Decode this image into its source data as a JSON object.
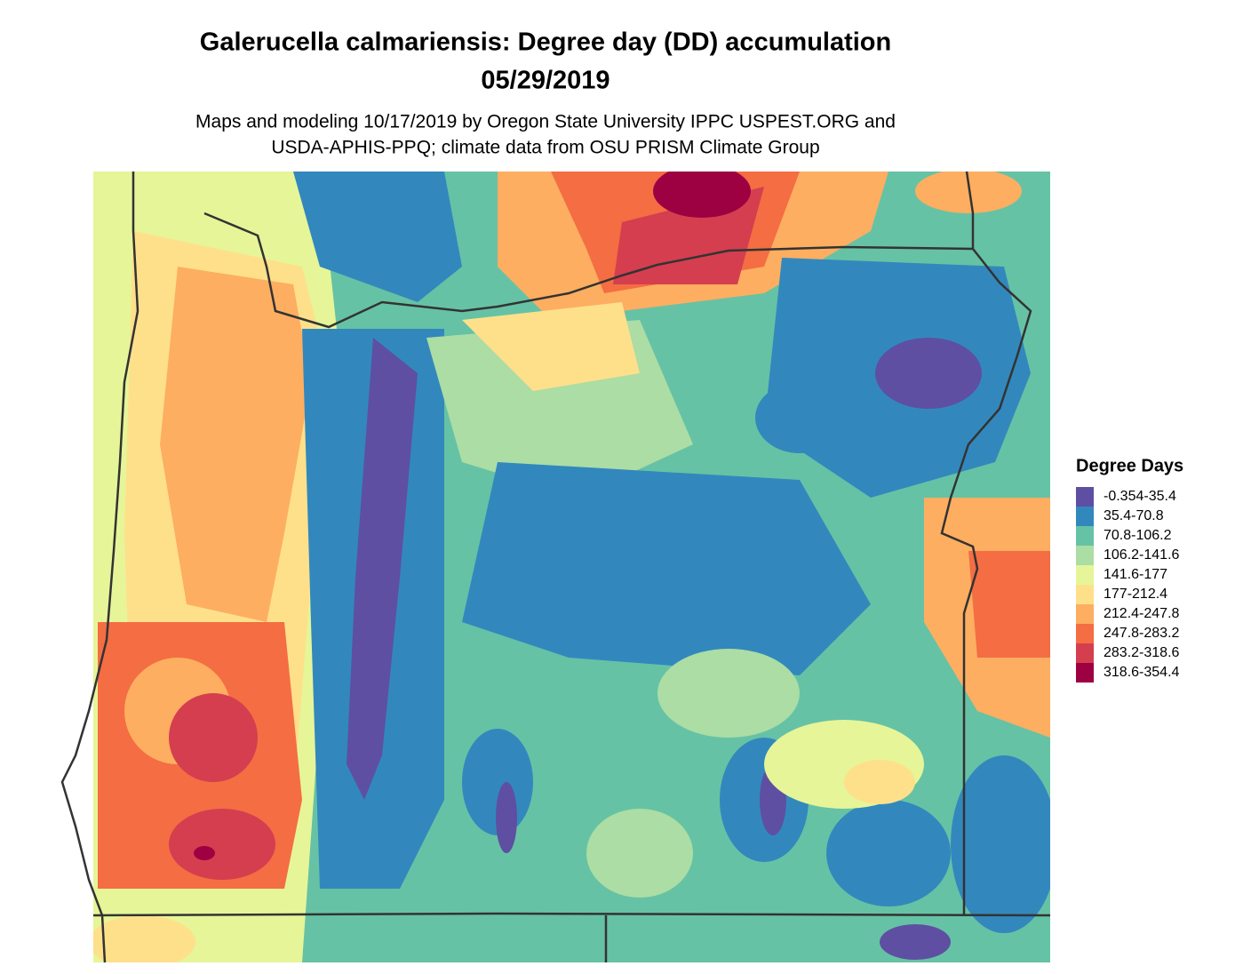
{
  "title": "Galerucella calmariensis: Degree day (DD) accumulation",
  "date": "05/29/2019",
  "subtitle": [
    "Maps and modeling 10/17/2019 by Oregon State University IPPC USPEST.ORG and",
    "USDA-APHIS-PPQ; climate data from OSU PRISM Climate Group"
  ],
  "legend": {
    "title": "Degree Days",
    "items": [
      {
        "label": "-0.354-35.4",
        "color": "#5E4FA2"
      },
      {
        "label": "35.4-70.8",
        "color": "#3288BD"
      },
      {
        "label": "70.8-106.2",
        "color": "#66C2A5"
      },
      {
        "label": "106.2-141.6",
        "color": "#ABDDA4"
      },
      {
        "label": "141.6-177",
        "color": "#E6F598"
      },
      {
        "label": "177-212.4",
        "color": "#FEE08B"
      },
      {
        "label": "212.4-247.8",
        "color": "#FDAE61"
      },
      {
        "label": "247.8-283.2",
        "color": "#F46D43"
      },
      {
        "label": "283.2-318.6",
        "color": "#D53E4F"
      },
      {
        "label": "318.6-354.4",
        "color": "#9E0142"
      }
    ]
  }
}
